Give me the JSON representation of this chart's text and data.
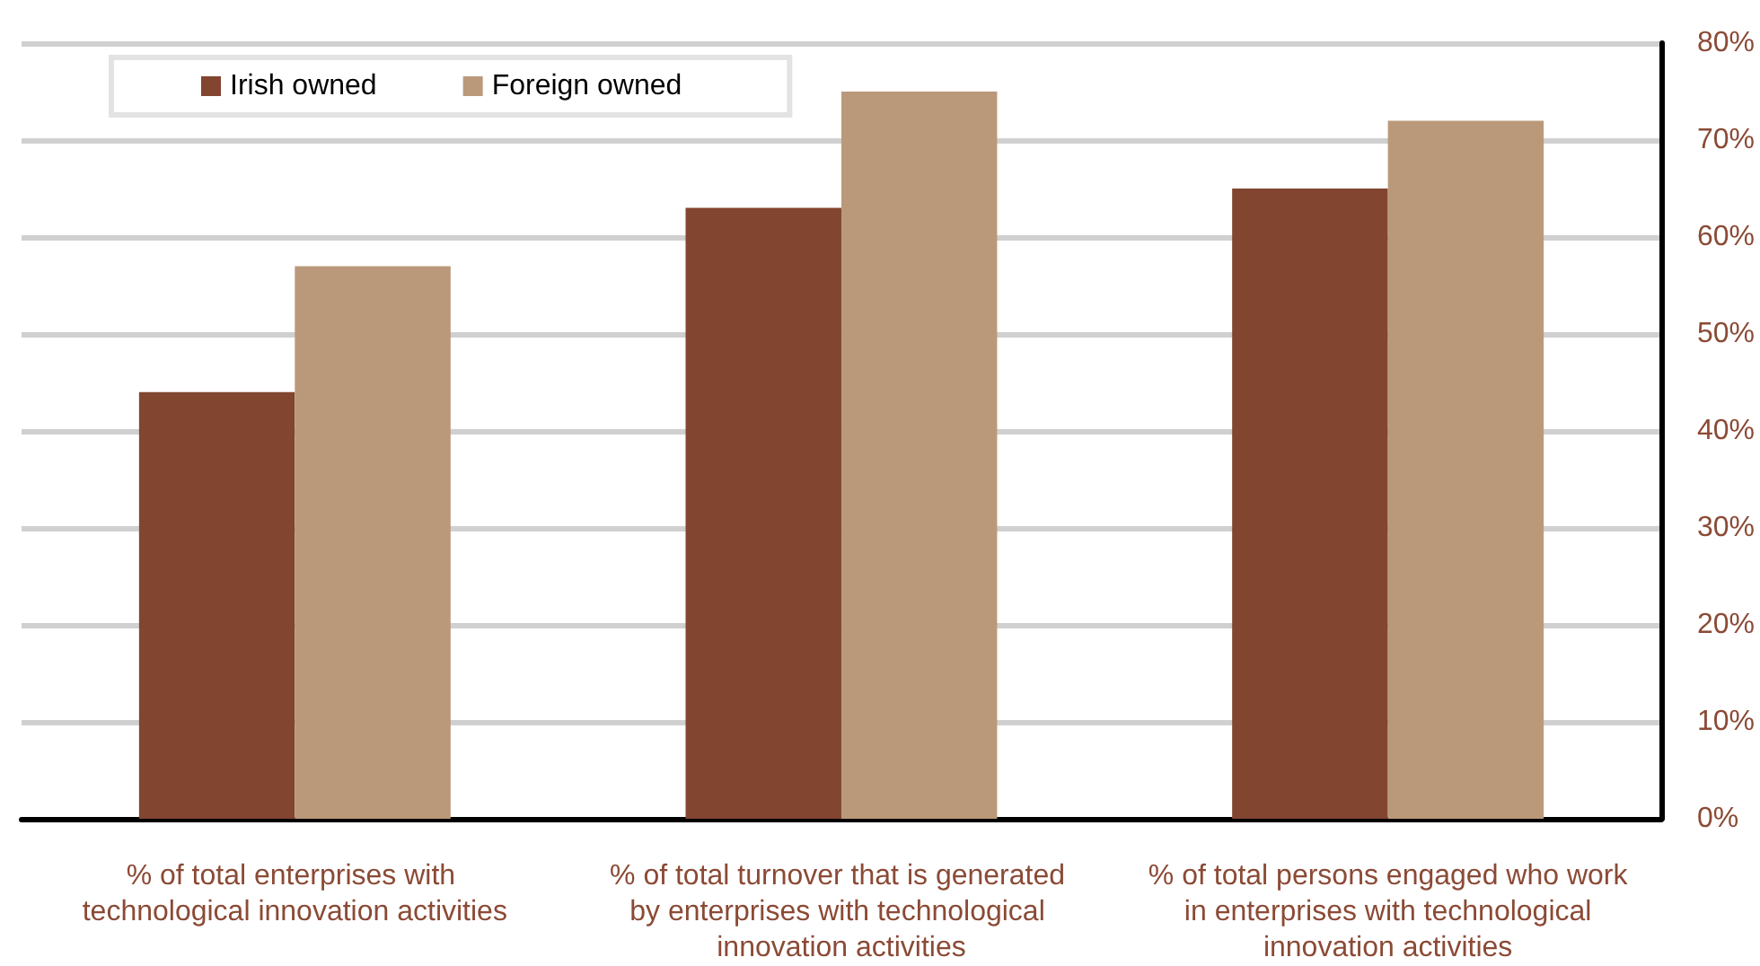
{
  "chart_data": {
    "type": "bar",
    "categories": [
      "% of total enterprises with technological innovation activities",
      "% of total turnover that is generated by enterprises with technological innovation activities",
      "% of total persons engaged who work in enterprises with technological innovation activities"
    ],
    "series": [
      {
        "name": "Irish owned",
        "color": "#824530",
        "values": [
          44,
          63,
          65
        ]
      },
      {
        "name": "Foreign owned",
        "color": "#ba997a",
        "values": [
          57,
          75,
          72
        ]
      }
    ],
    "ylim": [
      0,
      80
    ],
    "yticks": [
      {
        "value": 0,
        "label": "0%"
      },
      {
        "value": 10,
        "label": "10%"
      },
      {
        "value": 20,
        "label": "20%"
      },
      {
        "value": 30,
        "label": "30%"
      },
      {
        "value": 40,
        "label": "40%"
      },
      {
        "value": 50,
        "label": "50%"
      },
      {
        "value": 60,
        "label": "60%"
      },
      {
        "value": 70,
        "label": "70%"
      },
      {
        "value": 80,
        "label": "80%"
      }
    ],
    "grid": "y",
    "legend": "top left"
  }
}
